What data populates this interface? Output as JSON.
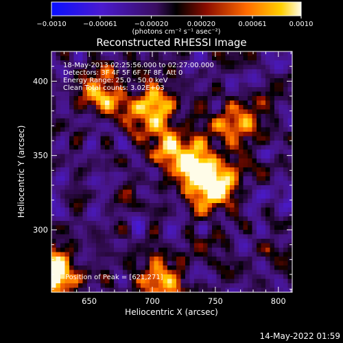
{
  "chart_data": {
    "type": "heatmap",
    "title": "Reconstructed RHESSI Image",
    "xlabel": "Heliocentric X (arcsec)",
    "ylabel": "Heliocentric Y (arcsec)",
    "xlim": [
      620,
      811
    ],
    "ylim": [
      258,
      420
    ],
    "x_ticks": [
      650,
      700,
      750,
      800
    ],
    "y_ticks": [
      300,
      350,
      400
    ],
    "colorbar": {
      "range": [
        -0.001,
        0.001
      ],
      "ticks": [
        -0.001,
        -0.00061,
        -0.0002,
        0.0002,
        0.00061,
        0.001
      ],
      "tick_labels": [
        "−0.0010",
        "−0.00061",
        "−0.00020",
        "0.00020",
        "0.00061",
        "0.0010"
      ],
      "units_label": "(photons cm⁻² s⁻¹ asec⁻²)"
    },
    "annotations": [
      "18-May-2013 02:25:56.000 to 02:27:00.000",
      "Detectors: 3F 4F 5F 6F 7F 8F, Att 0",
      "Energy Range: 25.0 - 50.0 keV",
      "Clean    Total counts: 3.02E+03"
    ],
    "peak_label": "Position of Peak = [621,271]",
    "peak_position": [
      621,
      271
    ],
    "sources": [
      {
        "x": 700,
        "y": 380,
        "flux": 0.00085
      },
      {
        "x": 735,
        "y": 342,
        "flux": 0.0008
      },
      {
        "x": 750,
        "y": 330,
        "flux": 0.0009
      },
      {
        "x": 715,
        "y": 355,
        "flux": 0.0006
      },
      {
        "x": 662,
        "y": 392,
        "flux": 0.0006
      },
      {
        "x": 770,
        "y": 372,
        "flux": 0.00055
      },
      {
        "x": 621,
        "y": 271,
        "flux": 0.001
      },
      {
        "x": 705,
        "y": 262,
        "flux": 0.0006
      }
    ],
    "footer_timestamp": "14-May-2022 01:59"
  }
}
